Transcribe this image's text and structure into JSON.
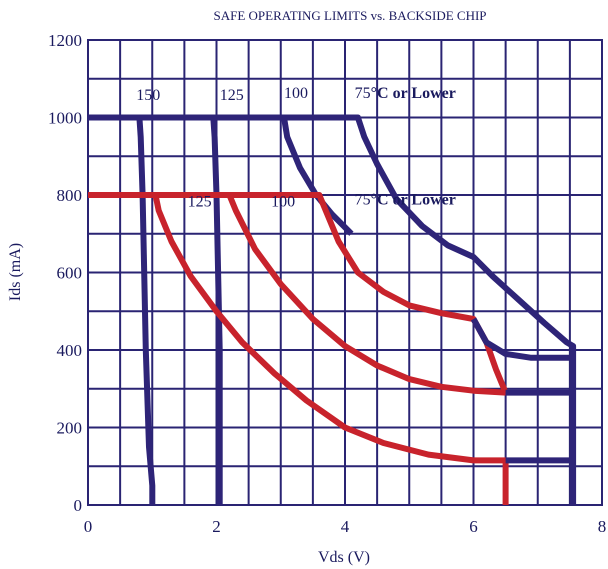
{
  "chart_data": {
    "type": "line",
    "title": "SAFE OPERATING LIMITS vs. BACKSIDE CHIP",
    "xlabel": "Vds (V)",
    "ylabel": "Ids (mA)",
    "xlim": [
      0,
      8
    ],
    "ylim": [
      0,
      1200
    ],
    "x_ticks": [
      "0",
      "2",
      "4",
      "6",
      "8"
    ],
    "y_ticks": [
      "0",
      "200",
      "400",
      "600",
      "800",
      "1000",
      "1200"
    ],
    "grid": true,
    "series": [
      {
        "group": "1000 mA limit",
        "label_text": "150",
        "color": "#2e2478",
        "x": [
          0,
          0.8,
          0.82,
          0.85,
          0.9,
          0.95,
          1.0,
          1.0
        ],
        "y": [
          1000,
          1000,
          950,
          800,
          400,
          150,
          50,
          0
        ]
      },
      {
        "group": "1000 mA limit",
        "label_text": "125",
        "color": "#2e2478",
        "x": [
          0.8,
          1.95,
          1.97,
          2.0,
          2.05,
          2.05
        ],
        "y": [
          1000,
          1000,
          950,
          800,
          400,
          0
        ]
      },
      {
        "group": "1000 mA limit",
        "label_text": "100",
        "color": "#2e2478",
        "x": [
          1.95,
          3.05,
          3.1,
          3.3,
          3.55,
          3.8,
          4.1
        ],
        "y": [
          1000,
          1000,
          950,
          870,
          800,
          750,
          700
        ]
      },
      {
        "group": "1000 mA limit",
        "label_text": "75°C or Lower",
        "color": "#2e2478",
        "x": [
          3.05,
          4.2,
          4.3,
          4.5,
          4.8,
          5.2,
          5.6,
          6.0,
          6.3,
          6.7,
          7.1,
          7.45,
          7.55,
          7.55
        ],
        "y": [
          1000,
          1000,
          950,
          880,
          790,
          720,
          670,
          640,
          590,
          530,
          470,
          420,
          410,
          0
        ]
      },
      {
        "group": "800 mA limit",
        "label_text": "",
        "color": "#c8232c",
        "x": [
          0,
          1.05,
          1.1,
          1.3,
          1.6,
          2.0,
          2.4,
          2.9,
          3.4,
          4.0,
          4.6,
          5.3,
          6.0,
          6.5,
          6.5
        ],
        "y": [
          800,
          800,
          760,
          680,
          590,
          500,
          420,
          340,
          270,
          200,
          160,
          130,
          115,
          115,
          0
        ]
      },
      {
        "group": "800 mA limit",
        "label_text": "125",
        "color": "#c8232c",
        "x": [
          1.05,
          2.2,
          2.3,
          2.6,
          3.0,
          3.5,
          4.0,
          4.5,
          5.0,
          5.5,
          6.0,
          6.3,
          6.5
        ],
        "y": [
          800,
          800,
          760,
          660,
          570,
          480,
          410,
          360,
          325,
          305,
          295,
          292,
          290
        ]
      },
      {
        "group": "800 mA limit",
        "label_text": "100",
        "color": "#c8232c",
        "x": [
          2.2,
          3.6,
          3.7,
          3.9,
          4.2,
          4.6,
          5.0,
          5.5,
          6.0,
          6.2,
          6.35,
          6.5
        ],
        "y": [
          800,
          800,
          760,
          680,
          600,
          550,
          515,
          495,
          480,
          420,
          350,
          290
        ]
      },
      {
        "group": "1000 mA limit",
        "label_text": "",
        "color": "#2e2478",
        "x": [
          6.0,
          6.2,
          6.5,
          6.9,
          7.3,
          7.55
        ],
        "y": [
          480,
          420,
          390,
          380,
          380,
          380
        ]
      },
      {
        "group": "1000 mA limit",
        "label_text": "",
        "color": "#2e2478",
        "x": [
          6.5,
          7.55
        ],
        "y": [
          290,
          290
        ]
      },
      {
        "group": "1000 mA limit",
        "label_text": "",
        "color": "#2e2478",
        "x": [
          6.5,
          7.55
        ],
        "y": [
          115,
          115
        ]
      }
    ],
    "annotations": [
      {
        "text": "150",
        "x": 0.75,
        "y": 1045,
        "bold": false
      },
      {
        "text": "125",
        "x": 2.05,
        "y": 1045,
        "bold": false
      },
      {
        "text": "100",
        "x": 3.05,
        "y": 1050,
        "bold": false
      },
      {
        "text": "75",
        "suffix": "°C or Lower",
        "x": 4.15,
        "y": 1050,
        "bold": true
      },
      {
        "text": "125",
        "x": 1.55,
        "y": 770,
        "bold": false
      },
      {
        "text": "100",
        "x": 2.85,
        "y": 770,
        "bold": false
      },
      {
        "text": "75",
        "suffix": "°C or Lower",
        "x": 4.15,
        "y": 775,
        "bold": true
      }
    ]
  }
}
